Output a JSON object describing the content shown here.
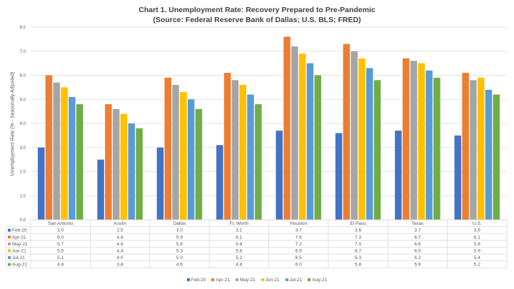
{
  "chart_data": {
    "type": "bar",
    "title": "Chart 1. Unemployment Rate: Recovery Prepared to Pre-Pandemic",
    "subtitle": "(Source: Federal Reserve Bank of Dallas; U.S. BLS; FRED)",
    "xlabel": "",
    "ylabel": "Unemployment Rate (% - Seasonally Adjusted)",
    "ylim": [
      0,
      8
    ],
    "yticks": [
      "0.0",
      "1.0",
      "2.0",
      "3.0",
      "4.0",
      "5.0",
      "6.0",
      "7.0",
      "8.0"
    ],
    "grid": true,
    "legend_position": "bottom",
    "data_table": true,
    "categories": [
      "San Antonio",
      "Austin",
      "Dallas",
      "Ft. Worth",
      "Houston",
      "El Paso",
      "Texas",
      "U.S."
    ],
    "series": [
      {
        "name": "Feb-20",
        "color": "#4472C4",
        "values": [
          3.0,
          2.5,
          3.0,
          3.1,
          3.7,
          3.6,
          3.7,
          3.5
        ]
      },
      {
        "name": "Apr-21",
        "color": "#ED7D31",
        "values": [
          6.0,
          4.8,
          5.9,
          6.1,
          7.6,
          7.3,
          6.7,
          6.1
        ]
      },
      {
        "name": "May-21",
        "color": "#A5A5A5",
        "values": [
          5.7,
          4.6,
          5.6,
          5.8,
          7.2,
          7.0,
          6.6,
          5.8
        ]
      },
      {
        "name": "Jun-21",
        "color": "#FFC000",
        "values": [
          5.5,
          4.4,
          5.3,
          5.6,
          6.9,
          6.7,
          6.5,
          5.9
        ]
      },
      {
        "name": "Jul-21",
        "color": "#5B9BD5",
        "values": [
          5.1,
          4.0,
          5.0,
          5.2,
          6.5,
          6.3,
          6.2,
          5.4
        ]
      },
      {
        "name": "Aug-21",
        "color": "#70AD47",
        "values": [
          4.8,
          3.8,
          4.6,
          4.8,
          6.0,
          5.8,
          5.9,
          5.2
        ]
      }
    ]
  }
}
